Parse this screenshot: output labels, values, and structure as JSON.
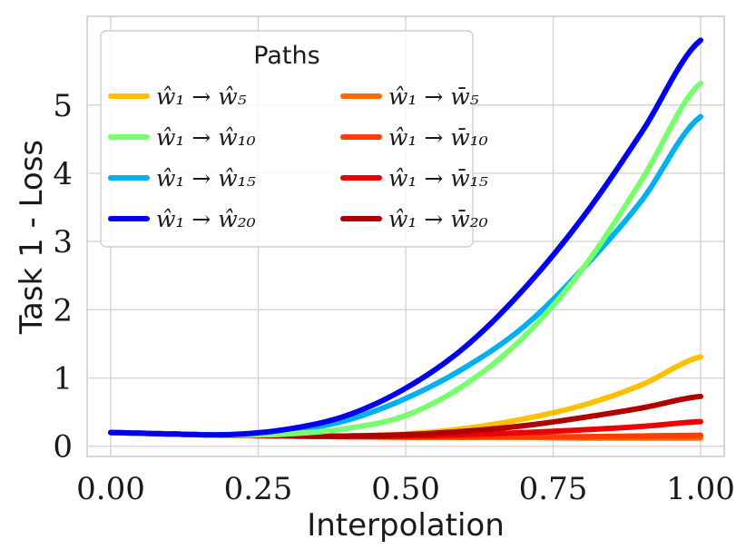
{
  "chart_data": {
    "type": "line",
    "xlabel": "Interpolation",
    "ylabel": "Task 1 - Loss",
    "xlim": [
      -0.04,
      1.04
    ],
    "ylim": [
      -0.15,
      6.3
    ],
    "xticks": [
      0.0,
      0.25,
      0.5,
      0.75,
      1.0
    ],
    "xtick_labels": [
      "0.00",
      "0.25",
      "0.50",
      "0.75",
      "1.00"
    ],
    "yticks": [
      0,
      1,
      2,
      3,
      4,
      5
    ],
    "ytick_labels": [
      "0",
      "1",
      "2",
      "3",
      "4",
      "5"
    ],
    "grid": true,
    "legend": {
      "title": "Paths",
      "placement": "top-left",
      "columns": 2
    },
    "x": [
      0.0,
      0.1,
      0.2,
      0.3,
      0.4,
      0.5,
      0.6,
      0.7,
      0.8,
      0.9,
      1.0
    ],
    "series": [
      {
        "name": "ŵ₁ → ŵ₅",
        "color": "#ffc000",
        "values": [
          0.2,
          0.18,
          0.16,
          0.15,
          0.15,
          0.18,
          0.26,
          0.4,
          0.6,
          0.9,
          1.31
        ]
      },
      {
        "name": "ŵ₁ → ŵ₁₀",
        "color": "#77ff6e",
        "values": [
          0.2,
          0.18,
          0.16,
          0.18,
          0.26,
          0.45,
          0.9,
          1.6,
          2.6,
          3.9,
          5.32
        ]
      },
      {
        "name": "ŵ₁ → ŵ₁₅",
        "color": "#00b0f0",
        "values": [
          0.2,
          0.18,
          0.17,
          0.22,
          0.38,
          0.7,
          1.15,
          1.75,
          2.6,
          3.6,
          4.83
        ]
      },
      {
        "name": "ŵ₁ → ŵ₂₀",
        "color": "#0000f0",
        "values": [
          0.2,
          0.18,
          0.17,
          0.25,
          0.45,
          0.85,
          1.45,
          2.3,
          3.35,
          4.6,
          5.95
        ]
      },
      {
        "name": "ŵ₁ → w̄₅",
        "color": "#ff6a00",
        "values": [
          0.2,
          0.18,
          0.16,
          0.15,
          0.14,
          0.13,
          0.13,
          0.13,
          0.12,
          0.12,
          0.12
        ]
      },
      {
        "name": "ŵ₁ → w̄₁₀",
        "color": "#ff3c00",
        "values": [
          0.2,
          0.18,
          0.16,
          0.15,
          0.14,
          0.14,
          0.14,
          0.14,
          0.14,
          0.15,
          0.16
        ]
      },
      {
        "name": "ŵ₁ → w̄₁₅",
        "color": "#ee0000",
        "values": [
          0.2,
          0.18,
          0.16,
          0.15,
          0.14,
          0.15,
          0.17,
          0.2,
          0.24,
          0.29,
          0.36
        ]
      },
      {
        "name": "ŵ₁ → w̄₂₀",
        "color": "#b00000",
        "values": [
          0.2,
          0.18,
          0.16,
          0.15,
          0.15,
          0.17,
          0.22,
          0.3,
          0.42,
          0.56,
          0.73
        ]
      }
    ]
  }
}
